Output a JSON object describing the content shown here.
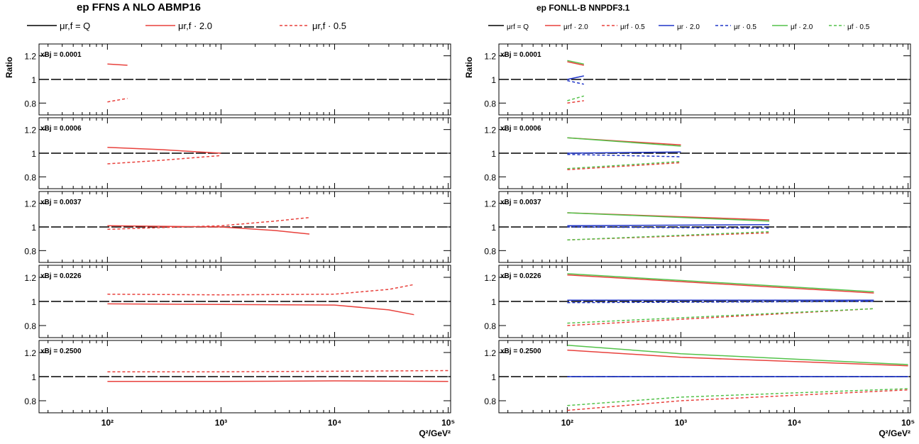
{
  "figure": {
    "y_axis_label": "Ratio",
    "x_axis_label": "Q²/GeV²",
    "x_tick_labels": [
      "10²",
      "10³",
      "10⁴",
      "10⁵"
    ],
    "x_tick_values": [
      100,
      1000,
      10000,
      100000
    ],
    "y_tick_labels": [
      "0.8",
      "1",
      "1.2"
    ],
    "y_tick_values": [
      0.8,
      1.0,
      1.2
    ],
    "colors": {
      "red": "#e8413c",
      "blue": "#1f35c8",
      "green": "#53c24a",
      "black": "#000000"
    }
  },
  "panels": [
    {
      "title": "ep FFNS A NLO ABMP16",
      "legend": [
        {
          "label": "μr,f = Q",
          "color": "#000000",
          "dash": "solid"
        },
        {
          "label": "μr,f · 2.0",
          "color": "#e8413c",
          "dash": "solid"
        },
        {
          "label": "μr,f · 0.5",
          "color": "#e8413c",
          "dash": "dashed"
        }
      ]
    },
    {
      "title": "ep FONLL-B NNPDF3.1",
      "legend": [
        {
          "label": "μrf = Q",
          "color": "#000000",
          "dash": "solid"
        },
        {
          "label": "μrf · 2.0",
          "color": "#e8413c",
          "dash": "solid"
        },
        {
          "label": "μrf · 0.5",
          "color": "#e8413c",
          "dash": "dashed"
        },
        {
          "label": "μr · 2.0",
          "color": "#1f35c8",
          "dash": "solid"
        },
        {
          "label": "μr · 0.5",
          "color": "#1f35c8",
          "dash": "dashed"
        },
        {
          "label": "μf · 2.0",
          "color": "#53c24a",
          "dash": "solid"
        },
        {
          "label": "μf · 0.5",
          "color": "#53c24a",
          "dash": "dashed"
        }
      ]
    }
  ],
  "row_labels": [
    "xBj = 0.0001",
    "xBj = 0.0006",
    "xBj = 0.0037",
    "xBj = 0.0226",
    "xBj = 0.2500"
  ],
  "chart_data": [
    {
      "type": "line",
      "title": "ep FFNS A NLO ABMP16",
      "xlabel": "Q²/GeV²",
      "ylabel": "Ratio",
      "xscale": "log",
      "xlim": [
        25,
        110000
      ],
      "ylim": [
        0.7,
        1.3
      ],
      "rows": [
        {
          "label": "xBj = 0.0001",
          "series": [
            {
              "name": "μr,f · 2.0",
              "x": [
                100,
                150
              ],
              "y": [
                1.13,
                1.12
              ]
            },
            {
              "name": "μr,f · 0.5",
              "x": [
                100,
                150
              ],
              "y": [
                0.81,
                0.84
              ]
            }
          ]
        },
        {
          "label": "xBj = 0.0006",
          "series": [
            {
              "name": "μr,f · 2.0",
              "x": [
                100,
                300,
                1000
              ],
              "y": [
                1.05,
                1.03,
                1.0
              ]
            },
            {
              "name": "μr,f · 0.5",
              "x": [
                100,
                300,
                1000
              ],
              "y": [
                0.91,
                0.94,
                0.98
              ]
            }
          ]
        },
        {
          "label": "xBj = 0.0037",
          "series": [
            {
              "name": "μr,f · 2.0",
              "x": [
                100,
                1000,
                3000,
                6000
              ],
              "y": [
                1.01,
                1.0,
                0.97,
                0.94
              ]
            },
            {
              "name": "μr,f · 0.5",
              "x": [
                100,
                1000,
                3000,
                6000
              ],
              "y": [
                0.98,
                1.01,
                1.05,
                1.08
              ]
            }
          ]
        },
        {
          "label": "xBj = 0.0226",
          "series": [
            {
              "name": "μr,f · 2.0",
              "x": [
                100,
                1000,
                10000,
                30000,
                50000
              ],
              "y": [
                0.98,
                0.975,
                0.97,
                0.93,
                0.89
              ]
            },
            {
              "name": "μr,f · 0.5",
              "x": [
                100,
                1000,
                10000,
                30000,
                50000
              ],
              "y": [
                1.06,
                1.055,
                1.06,
                1.1,
                1.14
              ]
            }
          ]
        },
        {
          "label": "xBj = 0.2500",
          "series": [
            {
              "name": "μr,f · 2.0",
              "x": [
                100,
                1000,
                10000,
                100000
              ],
              "y": [
                0.96,
                0.96,
                0.965,
                0.96
              ]
            },
            {
              "name": "μr,f · 0.5",
              "x": [
                100,
                1000,
                10000,
                100000
              ],
              "y": [
                1.04,
                1.04,
                1.045,
                1.05
              ]
            }
          ]
        }
      ]
    },
    {
      "type": "line",
      "title": "ep FONLL-B NNPDF3.1",
      "xlabel": "Q²/GeV²",
      "ylabel": "Ratio",
      "xscale": "log",
      "xlim": [
        25,
        110000
      ],
      "ylim": [
        0.7,
        1.3
      ],
      "rows": [
        {
          "label": "xBj = 0.0001",
          "series": [
            {
              "name": "μrf · 2.0",
              "x": [
                100,
                140
              ],
              "y": [
                1.15,
                1.12
              ]
            },
            {
              "name": "μrf · 0.5",
              "x": [
                100,
                140
              ],
              "y": [
                0.8,
                0.82
              ]
            },
            {
              "name": "μr · 2.0",
              "x": [
                100,
                140
              ],
              "y": [
                1.0,
                1.03
              ]
            },
            {
              "name": "μr · 0.5",
              "x": [
                100,
                140
              ],
              "y": [
                0.99,
                0.96
              ]
            },
            {
              "name": "μf · 2.0",
              "x": [
                100,
                140
              ],
              "y": [
                1.16,
                1.13
              ]
            },
            {
              "name": "μf · 0.5",
              "x": [
                100,
                140
              ],
              "y": [
                0.82,
                0.86
              ]
            }
          ]
        },
        {
          "label": "xBj = 0.0006",
          "series": [
            {
              "name": "μrf · 2.0",
              "x": [
                100,
                1000
              ],
              "y": [
                1.13,
                1.07
              ]
            },
            {
              "name": "μrf · 0.5",
              "x": [
                100,
                1000
              ],
              "y": [
                0.86,
                0.92
              ]
            },
            {
              "name": "μr · 2.0",
              "x": [
                100,
                1000
              ],
              "y": [
                1.0,
                1.01
              ]
            },
            {
              "name": "μr · 0.5",
              "x": [
                100,
                1000
              ],
              "y": [
                0.99,
                0.97
              ]
            },
            {
              "name": "μf · 2.0",
              "x": [
                100,
                1000
              ],
              "y": [
                1.13,
                1.06
              ]
            },
            {
              "name": "μf · 0.5",
              "x": [
                100,
                1000
              ],
              "y": [
                0.87,
                0.93
              ]
            }
          ]
        },
        {
          "label": "xBj = 0.0037",
          "series": [
            {
              "name": "μrf · 2.0",
              "x": [
                100,
                6000
              ],
              "y": [
                1.12,
                1.06
              ]
            },
            {
              "name": "μrf · 0.5",
              "x": [
                100,
                6000
              ],
              "y": [
                0.89,
                0.95
              ]
            },
            {
              "name": "μr · 2.0",
              "x": [
                100,
                6000
              ],
              "y": [
                1.01,
                1.02
              ]
            },
            {
              "name": "μr · 0.5",
              "x": [
                100,
                6000
              ],
              "y": [
                1.0,
                0.99
              ]
            },
            {
              "name": "μf · 2.0",
              "x": [
                100,
                6000
              ],
              "y": [
                1.12,
                1.05
              ]
            },
            {
              "name": "μf · 0.5",
              "x": [
                100,
                6000
              ],
              "y": [
                0.89,
                0.96
              ]
            }
          ]
        },
        {
          "label": "xBj = 0.0226",
          "series": [
            {
              "name": "μrf · 2.0",
              "x": [
                100,
                50000
              ],
              "y": [
                1.22,
                1.07
              ]
            },
            {
              "name": "μrf · 0.5",
              "x": [
                100,
                50000
              ],
              "y": [
                0.8,
                0.94
              ]
            },
            {
              "name": "μr · 2.0",
              "x": [
                100,
                50000
              ],
              "y": [
                1.01,
                1.01
              ]
            },
            {
              "name": "μr · 0.5",
              "x": [
                100,
                50000
              ],
              "y": [
                0.99,
                1.0
              ]
            },
            {
              "name": "μf · 2.0",
              "x": [
                100,
                50000
              ],
              "y": [
                1.23,
                1.08
              ]
            },
            {
              "name": "μf · 0.5",
              "x": [
                100,
                50000
              ],
              "y": [
                0.82,
                0.94
              ]
            }
          ]
        },
        {
          "label": "xBj = 0.2500",
          "series": [
            {
              "name": "μrf · 2.0",
              "x": [
                100,
                1000,
                100000
              ],
              "y": [
                1.22,
                1.16,
                1.09
              ]
            },
            {
              "name": "μrf · 0.5",
              "x": [
                100,
                1000,
                100000
              ],
              "y": [
                0.72,
                0.8,
                0.89
              ]
            },
            {
              "name": "μr · 2.0",
              "x": [
                100,
                100000
              ],
              "y": [
                1.0,
                1.0
              ]
            },
            {
              "name": "μr · 0.5",
              "x": [
                100,
                100000
              ],
              "y": [
                1.0,
                1.0
              ]
            },
            {
              "name": "μf · 2.0",
              "x": [
                100,
                1000,
                100000
              ],
              "y": [
                1.26,
                1.19,
                1.1
              ]
            },
            {
              "name": "μf · 0.5",
              "x": [
                100,
                1000,
                100000
              ],
              "y": [
                0.76,
                0.83,
                0.9
              ]
            }
          ]
        }
      ]
    }
  ]
}
